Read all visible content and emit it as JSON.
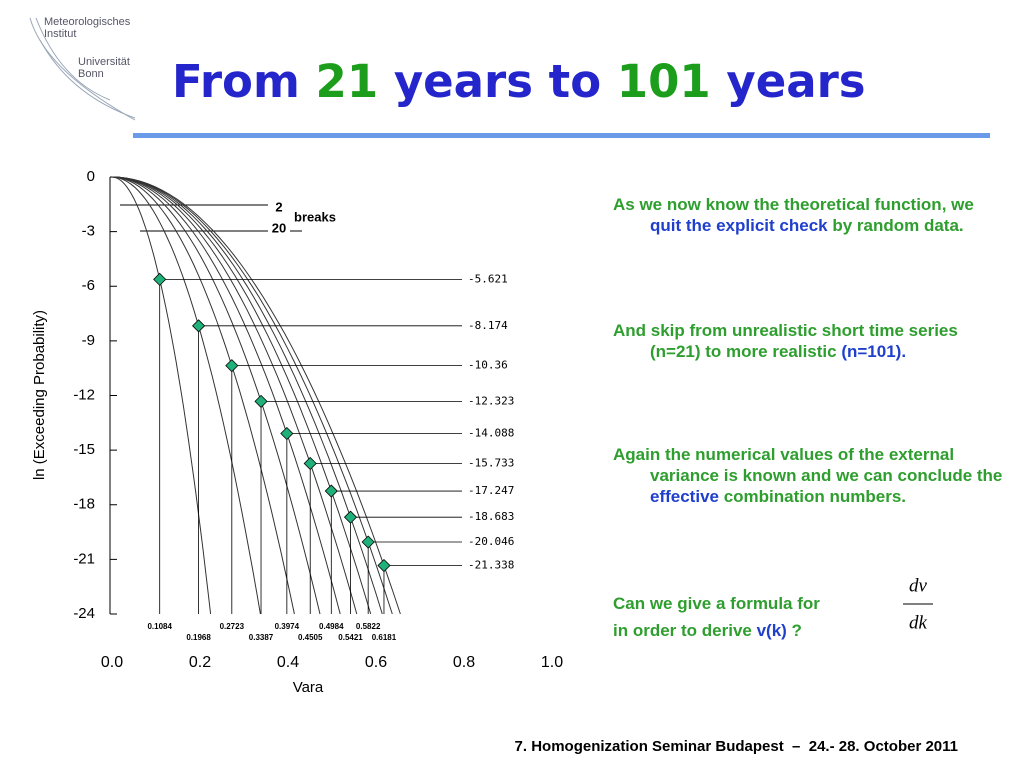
{
  "header": {
    "logo": [
      "Meteorologisches",
      "Institut",
      "Universität",
      "Bonn"
    ],
    "title": [
      "From ",
      "21",
      " years to ",
      "101",
      " years"
    ]
  },
  "chart_data": {
    "type": "scatter",
    "xlabel": "Vara",
    "ylabel": "ln (Exceeding Probability)",
    "x": [
      0.1084,
      0.1968,
      0.2723,
      0.3387,
      0.3974,
      0.4505,
      0.4984,
      0.5421,
      0.5822,
      0.6181
    ],
    "values": [
      -5.621,
      -8.174,
      -10.36,
      -12.323,
      -14.088,
      -15.733,
      -17.247,
      -18.683,
      -20.046,
      -21.338
    ],
    "color": "#20b07a",
    "xlim": [
      0,
      1
    ],
    "ylim": [
      -24,
      0
    ],
    "xticks": [
      {
        "value": 0,
        "label": "0.0"
      },
      0.2,
      0.4,
      0.6,
      0.8,
      {
        "value": 1,
        "label": "1.0"
      }
    ],
    "yticks": [
      0,
      -3,
      -6,
      -9,
      -12,
      -15,
      -18,
      -21,
      -24
    ],
    "annotations": [
      "2",
      "20",
      "breaks"
    ]
  },
  "text": {
    "paragraphs": [
      [
        "As we now know the theoretical function, we ",
        "quit the explicit check",
        " by random data."
      ],
      [
        "And skip from unrealistic short time series (n=21) to more realistic ",
        "(n=101)."
      ],
      [
        "Again the numerical values of the external variance is known and we can conclude the ",
        "effective",
        " combination numbers."
      ]
    ],
    "question": [
      [
        "Can we give a formula for"
      ],
      [
        "in order to derive ",
        "v(k)",
        " ?"
      ]
    ],
    "formula": {
      "numerator": "dv",
      "denominator": "dk"
    }
  },
  "footer": "7. Homogenization Seminar Budapest  –  24.- 28. October 2011"
}
